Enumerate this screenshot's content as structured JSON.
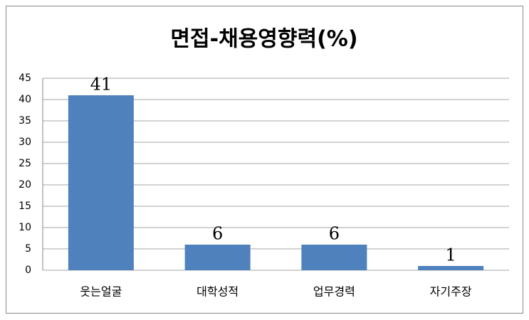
{
  "chart_data": {
    "type": "bar",
    "title": "면접-채용영향력(%)",
    "categories": [
      "웃는얼굴",
      "대학성적",
      "업무경력",
      "자기주장"
    ],
    "values": [
      41,
      6,
      6,
      1
    ],
    "color": "#4f81bd",
    "ylim": [
      0,
      45
    ],
    "yticks": [
      0,
      5,
      10,
      15,
      20,
      25,
      30,
      35,
      40,
      45
    ],
    "grid": true
  }
}
